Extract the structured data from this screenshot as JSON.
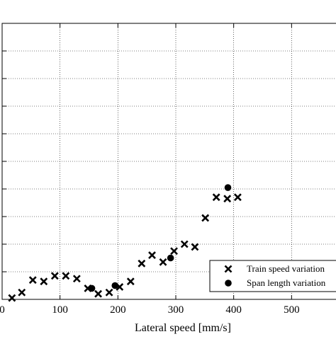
{
  "chart_data": {
    "type": "scatter",
    "title": "",
    "xlabel": "Lateral speed [mm/s]",
    "ylabel": "",
    "xlim": [
      0,
      600
    ],
    "ylim": [
      0,
      1.0
    ],
    "x_ticks": [
      0,
      100,
      200,
      300,
      400,
      500
    ],
    "x_tick_labels": [
      "0",
      "100",
      "200",
      "300",
      "400",
      "500"
    ],
    "grid": true,
    "legend": "bottom-right",
    "series": [
      {
        "name": "Train speed variation",
        "marker": "x",
        "color": "#000000",
        "x": [
          17,
          34,
          53,
          72,
          91,
          110,
          129,
          148,
          166,
          185,
          203,
          222,
          241,
          259,
          278,
          297,
          315,
          333,
          351,
          370,
          389,
          407
        ],
        "y": [
          0.005,
          0.025,
          0.07,
          0.065,
          0.085,
          0.085,
          0.075,
          0.04,
          0.02,
          0.025,
          0.045,
          0.065,
          0.13,
          0.16,
          0.135,
          0.175,
          0.2,
          0.19,
          0.295,
          0.37,
          0.365,
          0.37
        ]
      },
      {
        "name": "Span length variation",
        "marker": "o",
        "color": "#000000",
        "x": [
          155,
          195,
          291,
          390
        ],
        "y": [
          0.04,
          0.05,
          0.15,
          0.405
        ]
      }
    ]
  }
}
